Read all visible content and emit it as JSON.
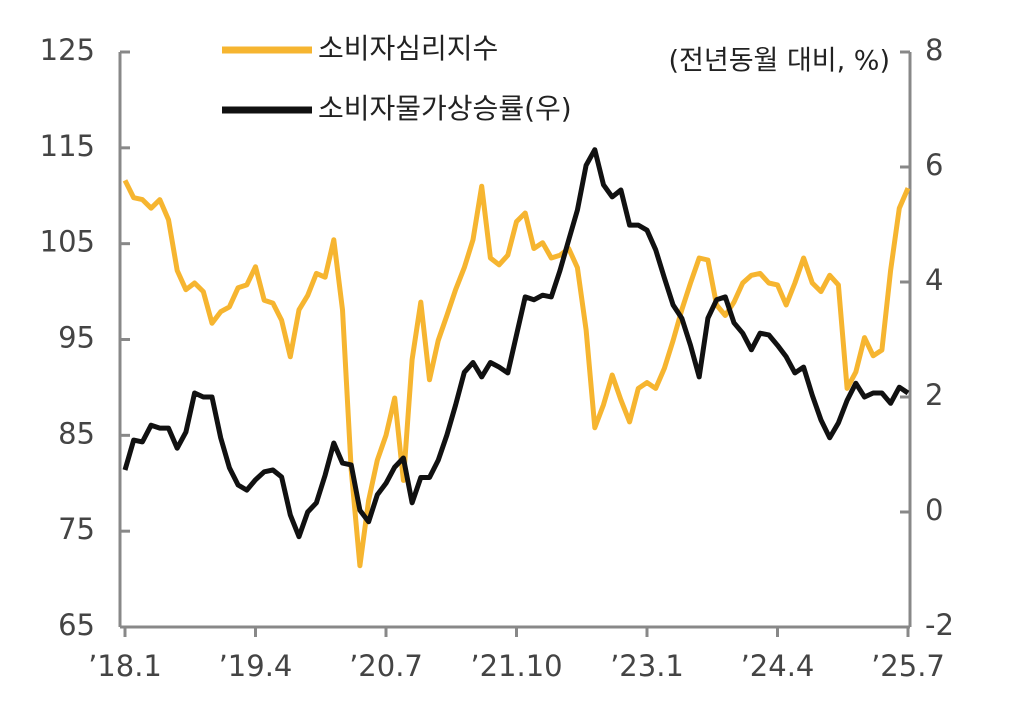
{
  "chart_data": {
    "type": "line",
    "y2_axis_label": "(전년동월 대비, %)",
    "categories": [
      "’18.1",
      null,
      null,
      null,
      null,
      null,
      null,
      null,
      null,
      null,
      null,
      null,
      null,
      null,
      null,
      "’19.4",
      null,
      null,
      null,
      null,
      null,
      null,
      null,
      null,
      null,
      null,
      null,
      null,
      null,
      null,
      "’20.7",
      null,
      null,
      null,
      null,
      null,
      null,
      null,
      null,
      null,
      null,
      null,
      null,
      null,
      null,
      "’21.10",
      null,
      null,
      null,
      null,
      null,
      null,
      null,
      null,
      null,
      null,
      null,
      null,
      null,
      null,
      "’23.1",
      null,
      null,
      null,
      null,
      null,
      null,
      null,
      null,
      null,
      null,
      null,
      null,
      null,
      null,
      "’24.4",
      null,
      null,
      null,
      null,
      null,
      null,
      null,
      null,
      null,
      null,
      null,
      null,
      null,
      null,
      "’25.7"
    ],
    "series": [
      {
        "name": "소비자심리지수",
        "color": "#f6b530",
        "values": [
          111.6,
          109.8,
          109.6,
          108.7,
          109.6,
          107.5,
          102.2,
          100.2,
          100.9,
          100,
          96.7,
          97.9,
          98.4,
          100.4,
          100.7,
          102.6,
          99.1,
          98.8,
          97,
          93.2,
          98.1,
          99.6,
          101.9,
          101.5,
          105.4,
          98.1,
          81.4,
          71.4,
          78.2,
          82.4,
          85,
          88.9,
          80.3,
          92.9,
          98.9,
          90.8,
          94.9,
          97.5,
          100.2,
          102.5,
          105.4,
          111,
          103.5,
          102.8,
          103.8,
          107.3,
          108.2,
          104.5,
          105.1,
          103.5,
          103.8,
          104.5,
          102.5,
          96,
          85.8,
          88.2,
          91.3,
          88.7,
          86.4,
          89.9,
          90.5,
          89.9,
          92,
          94.9,
          98.1,
          100.9,
          103.5,
          103.3,
          98.6,
          97.5,
          98.9,
          100.9,
          101.7,
          101.9,
          100.9,
          100.7,
          98.6,
          100.9,
          103.5,
          100.9,
          100,
          101.7,
          100.7,
          89.9,
          91.6,
          95.2,
          93.3,
          93.9,
          102.2,
          108.7,
          110.8
        ]
      },
      {
        "name": "소비자물가상승률(우)",
        "color": "#111111",
        "axis": "y2",
        "values": [
          0.73,
          1.25,
          1.22,
          1.51,
          1.46,
          1.46,
          1.11,
          1.39,
          2.07,
          2.0,
          2.0,
          1.29,
          0.77,
          0.47,
          0.38,
          0.56,
          0.7,
          0.73,
          0.61,
          -0.05,
          -0.43,
          0.0,
          0.16,
          0.64,
          1.2,
          0.85,
          0.82,
          0.03,
          -0.17,
          0.3,
          0.5,
          0.78,
          0.94,
          0.16,
          0.6,
          0.6,
          0.9,
          1.34,
          1.86,
          2.43,
          2.6,
          2.35,
          2.6,
          2.52,
          2.42,
          3.08,
          3.74,
          3.69,
          3.77,
          3.74,
          4.2,
          4.73,
          5.25,
          6.03,
          6.3,
          5.69,
          5.48,
          5.6,
          4.99,
          4.99,
          4.9,
          4.56,
          4.07,
          3.6,
          3.37,
          2.9,
          2.35,
          3.37,
          3.69,
          3.74,
          3.29,
          3.11,
          2.82,
          3.11,
          3.08,
          2.9,
          2.7,
          2.42,
          2.52,
          2.03,
          1.6,
          1.29,
          1.55,
          1.94,
          2.24,
          2.0,
          2.07,
          2.07,
          1.89,
          2.17,
          2.07
        ]
      }
    ],
    "ylim": [
      65,
      125
    ],
    "yticks": [
      65,
      75,
      85,
      95,
      105,
      115,
      125
    ],
    "y2lim": [
      -2,
      8
    ],
    "y2ticks": [
      -2,
      0,
      2,
      4,
      6,
      8
    ],
    "grid": false,
    "legend": "top"
  }
}
